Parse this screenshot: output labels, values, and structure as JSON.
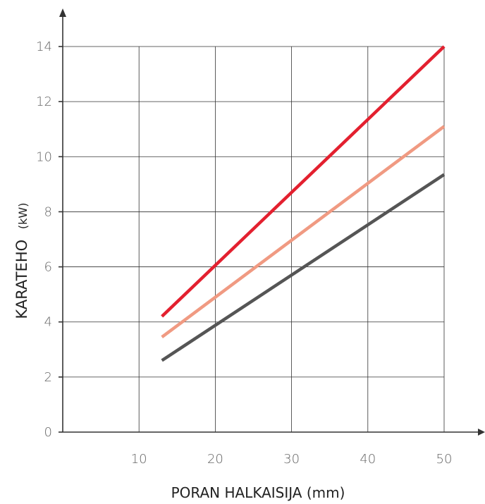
{
  "chart_data": {
    "type": "line",
    "title": "",
    "xlabel": "PORAN HALKAISIJA (mm)",
    "ylabel": "KARATEHO",
    "ylabel_unit": "(kW)",
    "xlim": [
      0,
      50
    ],
    "ylim": [
      0,
      14
    ],
    "x_ticks": [
      10,
      20,
      30,
      40,
      50
    ],
    "y_ticks": [
      0,
      2,
      4,
      6,
      8,
      10,
      12,
      14
    ],
    "x_tick_labels": [
      "10",
      "20",
      "30",
      "40",
      "50"
    ],
    "y_tick_labels": [
      "0",
      "2",
      "4",
      "6",
      "8",
      "10",
      "12",
      "14"
    ],
    "grid": true,
    "series": [
      {
        "x": [
          13,
          50
        ],
        "y": [
          4.2,
          14.0
        ],
        "color": "#e3202f"
      },
      {
        "x": [
          13,
          50
        ],
        "y": [
          3.45,
          11.1
        ],
        "color": "#f09a82"
      },
      {
        "x": [
          13,
          50
        ],
        "y": [
          2.6,
          9.35
        ],
        "color": "#555555"
      }
    ]
  }
}
